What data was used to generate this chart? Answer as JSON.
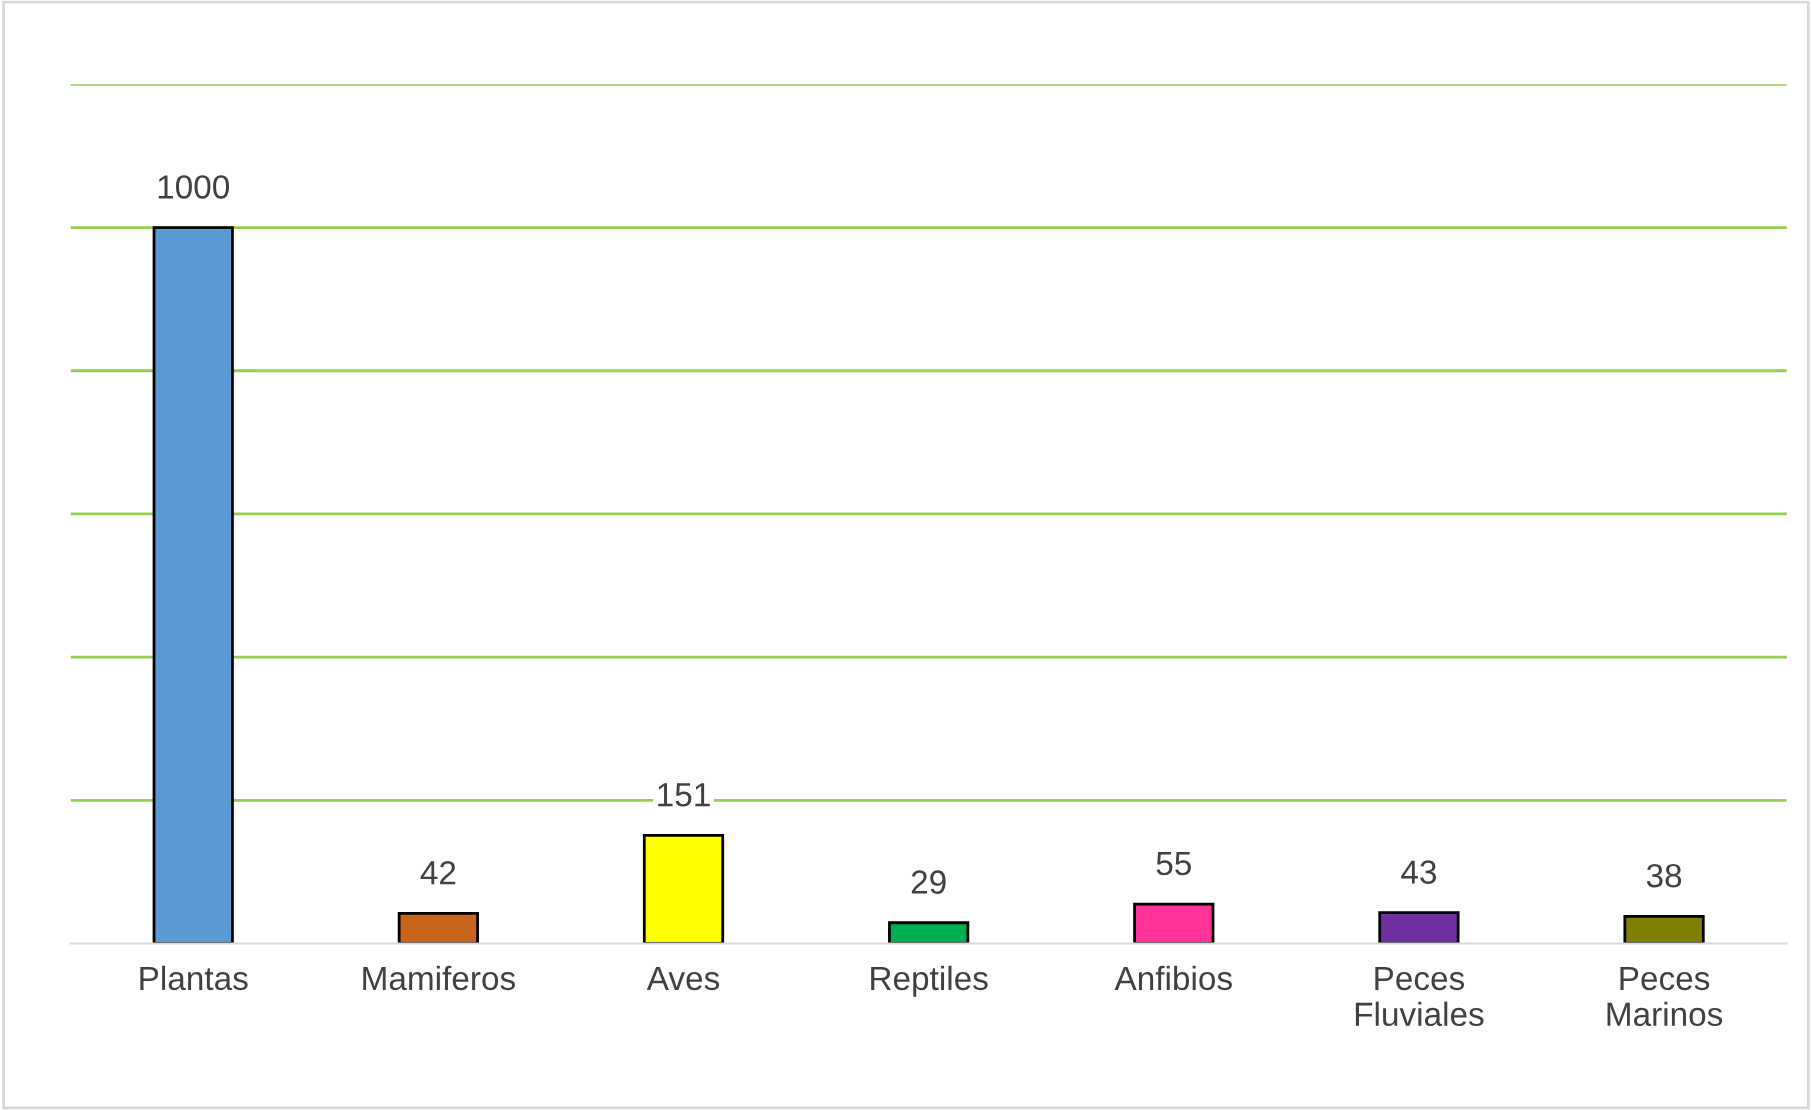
{
  "chart_data": {
    "type": "bar",
    "categories": [
      "Plantas",
      "Mamiferos",
      "Aves",
      "Reptiles",
      "Anfibios",
      "Peces\nFluviales",
      "Peces\nMarinos"
    ],
    "values": [
      1000,
      42,
      151,
      29,
      55,
      43,
      38
    ],
    "colors": [
      "#5b9bd5",
      "#c8651b",
      "#ffff00",
      "#00b050",
      "#ff3399",
      "#7030a0",
      "#7f7f00"
    ],
    "ylim": [
      0,
      1200
    ],
    "yticks": [
      {
        "value": 200,
        "label": null
      },
      {
        "value": 400,
        "label": null
      },
      {
        "value": 600,
        "label": null
      },
      {
        "value": 800,
        "label": null
      },
      {
        "value": 1000,
        "label": null
      },
      {
        "value": 1200,
        "label": null
      }
    ],
    "tick_labels": "x",
    "grid": "y",
    "data_labels": true
  }
}
